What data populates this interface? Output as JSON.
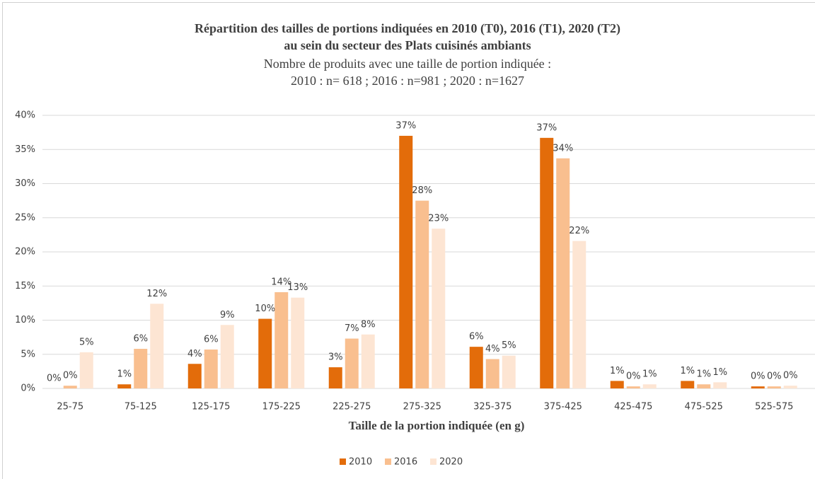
{
  "chart_data": {
    "type": "bar",
    "title": [
      "Répartition des tailles de portions indiquées en 2010 (T0), 2016 (T1), 2020 (T2)",
      "au sein du secteur des Plats cuisinés ambiants"
    ],
    "subtitle": [
      "Nombre de produits avec une taille de portion indiquée :",
      "2010 : n= 618 ; 2016 : n=981 ; 2020 : n=1627"
    ],
    "x_label": "Taille de la portion indiquée (en g)",
    "categories": [
      "25-75",
      "75-125",
      "125-175",
      "175-225",
      "225-275",
      "275-325",
      "325-375",
      "375-425",
      "425-475",
      "475-525",
      "525-575"
    ],
    "series": [
      {
        "name": "2010",
        "color": "#e36c0a",
        "values": [
          0,
          0.6,
          3.6,
          10.2,
          3.1,
          37.0,
          6.1,
          36.7,
          1.1,
          1.1,
          0.3
        ],
        "value_labels": [
          "0%",
          "1%",
          "4%",
          "10%",
          "3%",
          "37%",
          "6%",
          "37%",
          "1%",
          "1%",
          "0%"
        ]
      },
      {
        "name": "2016",
        "color": "#f9bf8f",
        "values": [
          0.4,
          5.8,
          5.7,
          14.1,
          7.3,
          27.5,
          4.3,
          33.7,
          0.3,
          0.6,
          0.3
        ],
        "value_labels": [
          "0%",
          "6%",
          "6%",
          "14%",
          "7%",
          "28%",
          "4%",
          "34%",
          "0%",
          "1%",
          "0%"
        ]
      },
      {
        "name": "2020",
        "color": "#fde5d3",
        "values": [
          5.3,
          12.4,
          9.3,
          13.3,
          7.9,
          23.4,
          4.8,
          21.6,
          0.6,
          0.9,
          0.4
        ],
        "value_labels": [
          "5%",
          "12%",
          "9%",
          "13%",
          "8%",
          "23%",
          "5%",
          "22%",
          "1%",
          "1%",
          "0%"
        ]
      }
    ],
    "ylim": [
      0,
      40
    ],
    "yticks": [
      {
        "value": 0,
        "label": "0%"
      },
      {
        "value": 5,
        "label": "5%"
      },
      {
        "value": 10,
        "label": "10%"
      },
      {
        "value": 15,
        "label": "15%"
      },
      {
        "value": 20,
        "label": "20%"
      },
      {
        "value": 25,
        "label": "25%"
      },
      {
        "value": 30,
        "label": "30%"
      },
      {
        "value": 35,
        "label": "35%"
      },
      {
        "value": 40,
        "label": "40%"
      }
    ],
    "grid": true,
    "legend": "bottom"
  }
}
